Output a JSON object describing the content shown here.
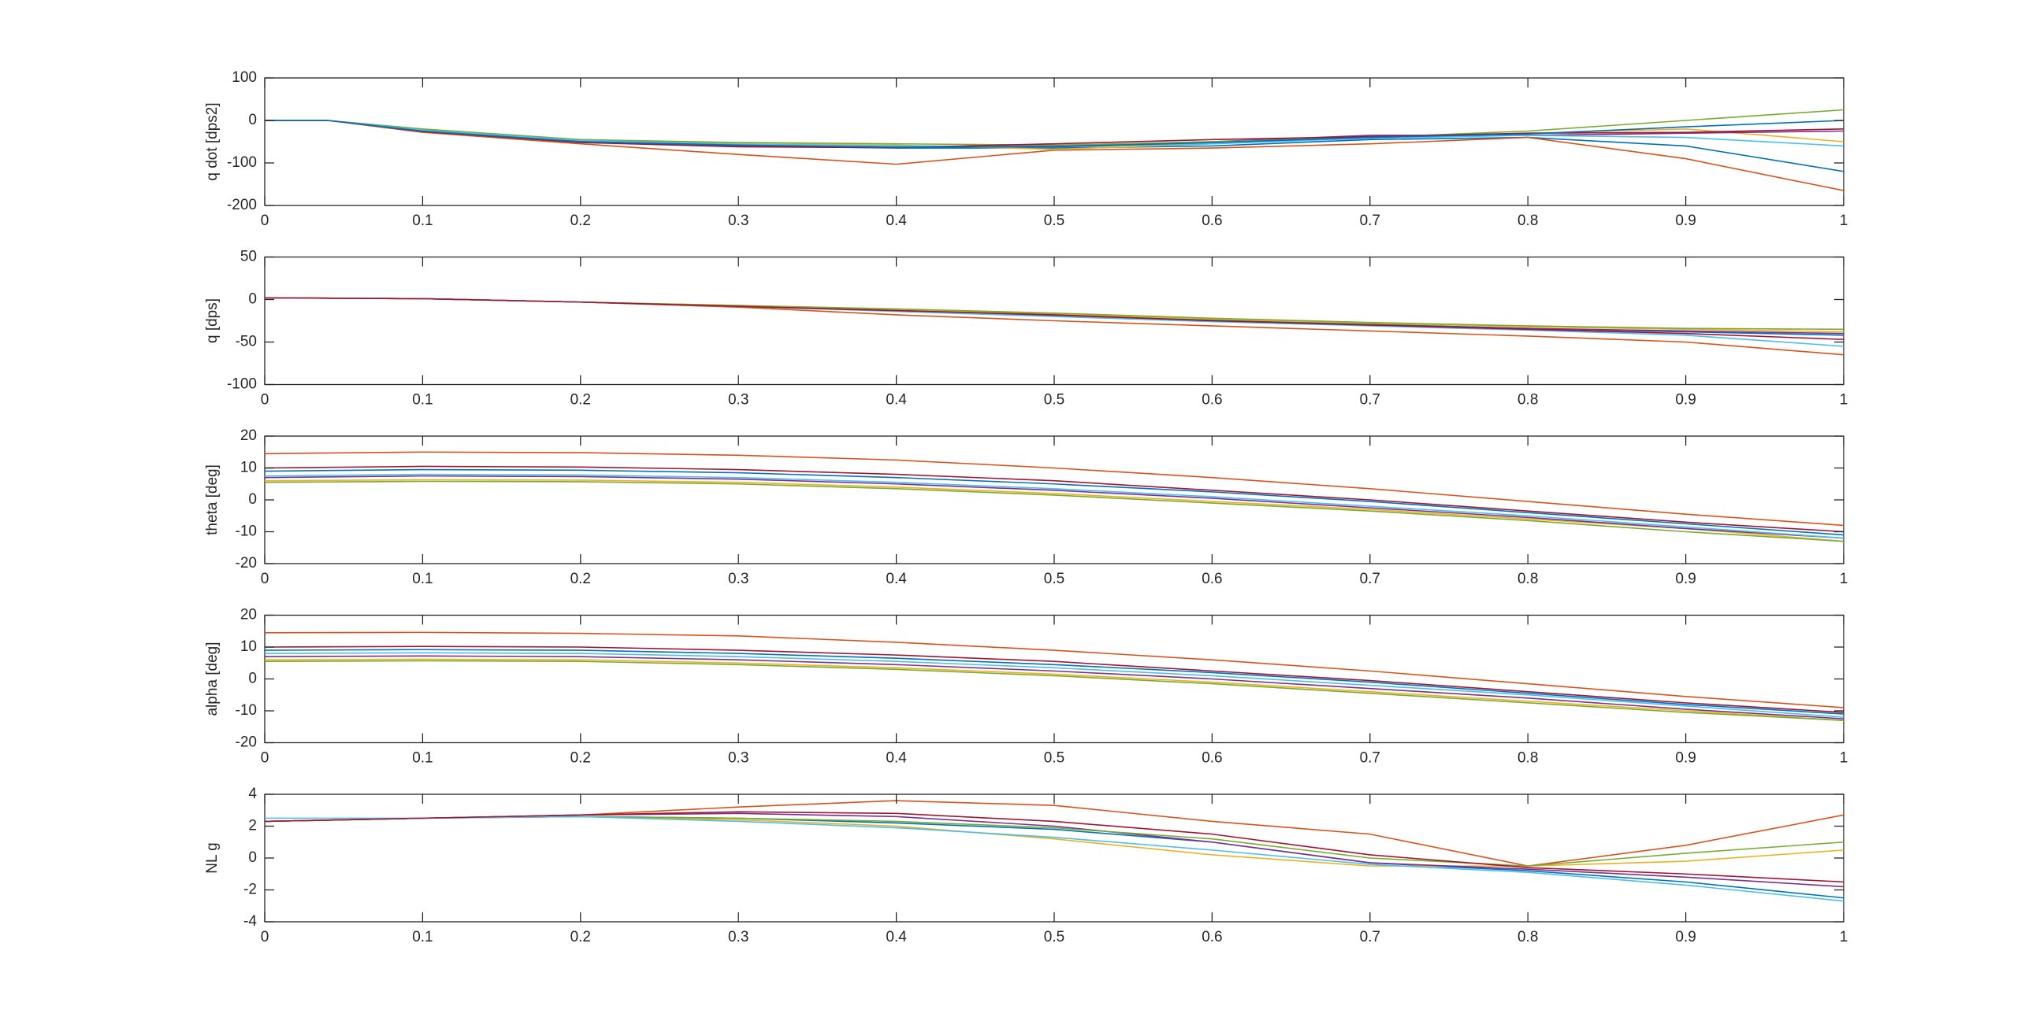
{
  "chart_data": [
    {
      "type": "line",
      "ylabel": "q dot [dps2]",
      "ylim": [
        -200,
        100
      ],
      "yticks": [
        -200,
        -100,
        0,
        100
      ],
      "xlim": [
        0,
        1
      ],
      "xticks": [
        0,
        0.1,
        0.2,
        0.3,
        0.4,
        0.5,
        0.6,
        0.7,
        0.8,
        0.9,
        1
      ],
      "x": [
        0,
        0.04,
        0.1,
        0.2,
        0.3,
        0.4,
        0.5,
        0.6,
        0.7,
        0.8,
        0.9,
        1
      ],
      "series": [
        {
          "color": "#0072bd",
          "values": [
            0,
            0,
            -25,
            -50,
            -60,
            -65,
            -65,
            -60,
            -45,
            -40,
            -60,
            -120
          ]
        },
        {
          "color": "#d95319",
          "values": [
            0,
            0,
            -28,
            -55,
            -80,
            -103,
            -70,
            -65,
            -55,
            -40,
            -90,
            -165
          ]
        },
        {
          "color": "#edb120",
          "values": [
            0,
            0,
            -22,
            -45,
            -55,
            -58,
            -68,
            -55,
            -40,
            -30,
            -20,
            -50
          ]
        },
        {
          "color": "#7e2f8e",
          "values": [
            0,
            0,
            -24,
            -48,
            -58,
            -62,
            -60,
            -50,
            -35,
            -35,
            -30,
            -25
          ]
        },
        {
          "color": "#77ac30",
          "values": [
            0,
            0,
            -20,
            -45,
            -52,
            -55,
            -58,
            -50,
            -40,
            -25,
            0,
            25
          ]
        },
        {
          "color": "#4dbeee",
          "values": [
            0,
            0,
            -23,
            -47,
            -56,
            -60,
            -62,
            -55,
            -42,
            -35,
            -40,
            -60
          ]
        },
        {
          "color": "#a2142f",
          "values": [
            0,
            0,
            -26,
            -52,
            -62,
            -64,
            -55,
            -45,
            -38,
            -30,
            -28,
            -20
          ]
        },
        {
          "color": "#0072bd",
          "values": [
            0,
            0,
            -25,
            -50,
            -58,
            -63,
            -62,
            -52,
            -40,
            -32,
            -15,
            0
          ]
        }
      ]
    },
    {
      "type": "line",
      "ylabel": "q  [dps]",
      "ylim": [
        -100,
        50
      ],
      "yticks": [
        -100,
        -50,
        0,
        50
      ],
      "xlim": [
        0,
        1
      ],
      "xticks": [
        0,
        0.1,
        0.2,
        0.3,
        0.4,
        0.5,
        0.6,
        0.7,
        0.8,
        0.9,
        1
      ],
      "x": [
        0,
        0.1,
        0.2,
        0.3,
        0.4,
        0.5,
        0.6,
        0.7,
        0.8,
        0.9,
        1
      ],
      "series": [
        {
          "color": "#0072bd",
          "values": [
            2,
            1,
            -3,
            -8,
            -13,
            -18,
            -24,
            -29,
            -34,
            -38,
            -42
          ]
        },
        {
          "color": "#d95319",
          "values": [
            2,
            1,
            -3,
            -9,
            -18,
            -25,
            -31,
            -37,
            -43,
            -50,
            -65
          ]
        },
        {
          "color": "#edb120",
          "values": [
            2,
            1,
            -3,
            -7,
            -12,
            -17,
            -23,
            -28,
            -32,
            -35,
            -38
          ]
        },
        {
          "color": "#7e2f8e",
          "values": [
            2,
            1,
            -3,
            -8,
            -13,
            -19,
            -25,
            -30,
            -34,
            -37,
            -40
          ]
        },
        {
          "color": "#77ac30",
          "values": [
            2,
            1,
            -3,
            -7,
            -11,
            -16,
            -22,
            -27,
            -31,
            -34,
            -35
          ]
        },
        {
          "color": "#4dbeee",
          "values": [
            2,
            1,
            -3,
            -8,
            -14,
            -20,
            -26,
            -31,
            -36,
            -42,
            -55
          ]
        },
        {
          "color": "#a2142f",
          "values": [
            2,
            1,
            -3,
            -8,
            -13,
            -18,
            -25,
            -30,
            -35,
            -40,
            -47
          ]
        }
      ]
    },
    {
      "type": "line",
      "ylabel": "theta [deg]",
      "ylim": [
        -20,
        20
      ],
      "yticks": [
        -20,
        -10,
        0,
        10,
        20
      ],
      "xlim": [
        0,
        1
      ],
      "xticks": [
        0,
        0.1,
        0.2,
        0.3,
        0.4,
        0.5,
        0.6,
        0.7,
        0.8,
        0.9,
        1
      ],
      "x": [
        0,
        0.1,
        0.2,
        0.3,
        0.4,
        0.5,
        0.6,
        0.7,
        0.8,
        0.9,
        1
      ],
      "series": [
        {
          "color": "#0072bd",
          "values": [
            9,
            9.5,
            9.3,
            8.5,
            7,
            5,
            2.5,
            -0.5,
            -4,
            -7.5,
            -11
          ]
        },
        {
          "color": "#d95319",
          "values": [
            14.5,
            15,
            14.8,
            14,
            12.5,
            10,
            7,
            3.5,
            -0.5,
            -4.5,
            -8
          ]
        },
        {
          "color": "#edb120",
          "values": [
            6,
            6.3,
            6.2,
            5.5,
            4,
            2,
            -0.5,
            -3,
            -6,
            -9,
            -13
          ]
        },
        {
          "color": "#7e2f8e",
          "values": [
            7,
            7.5,
            7.3,
            6.5,
            5,
            3,
            0.5,
            -2.5,
            -5.5,
            -9,
            -12
          ]
        },
        {
          "color": "#77ac30",
          "values": [
            5.5,
            5.8,
            5.7,
            5,
            3.5,
            1.5,
            -1,
            -3.5,
            -6.5,
            -10,
            -13
          ]
        },
        {
          "color": "#4dbeee",
          "values": [
            7.5,
            8,
            7.8,
            7,
            5.5,
            3.5,
            1,
            -2,
            -5,
            -8.5,
            -12
          ]
        },
        {
          "color": "#a2142f",
          "values": [
            10,
            10.5,
            10.3,
            9.5,
            8,
            6,
            3,
            0,
            -3.5,
            -7,
            -10
          ]
        }
      ]
    },
    {
      "type": "line",
      "ylabel": "alpha [deg]",
      "ylim": [
        -20,
        20
      ],
      "yticks": [
        -20,
        -10,
        0,
        10,
        20
      ],
      "xlim": [
        0,
        1
      ],
      "xticks": [
        0,
        0.1,
        0.2,
        0.3,
        0.4,
        0.5,
        0.6,
        0.7,
        0.8,
        0.9,
        1
      ],
      "x": [
        0,
        0.1,
        0.2,
        0.3,
        0.4,
        0.5,
        0.6,
        0.7,
        0.8,
        0.9,
        1
      ],
      "series": [
        {
          "color": "#0072bd",
          "values": [
            9,
            9.2,
            9,
            8,
            6.5,
            4.5,
            2,
            -1,
            -4.5,
            -8,
            -11
          ]
        },
        {
          "color": "#d95319",
          "values": [
            14.5,
            14.6,
            14.3,
            13.5,
            11.5,
            9,
            6,
            2.5,
            -1.5,
            -5.5,
            -9
          ]
        },
        {
          "color": "#edb120",
          "values": [
            6,
            6.2,
            6,
            5,
            3.5,
            1.5,
            -1,
            -4,
            -7,
            -10,
            -13
          ]
        },
        {
          "color": "#7e2f8e",
          "values": [
            7,
            7.2,
            7,
            6,
            4.5,
            2.5,
            0,
            -3,
            -6,
            -9.5,
            -12.5
          ]
        },
        {
          "color": "#77ac30",
          "values": [
            5.5,
            5.7,
            5.5,
            4.5,
            3,
            1,
            -1.5,
            -4.5,
            -7.5,
            -10.5,
            -13
          ]
        },
        {
          "color": "#4dbeee",
          "values": [
            8,
            8.2,
            8,
            7,
            5.5,
            3.5,
            1,
            -2,
            -5,
            -8.5,
            -12
          ]
        },
        {
          "color": "#a2142f",
          "values": [
            10,
            10.2,
            10,
            9,
            7.5,
            5.5,
            2.5,
            -0.5,
            -4,
            -7.5,
            -10.5
          ]
        }
      ]
    },
    {
      "type": "line",
      "ylabel": "NL g",
      "ylim": [
        -4,
        4
      ],
      "yticks": [
        -4,
        -2,
        0,
        2,
        4
      ],
      "xlim": [
        0,
        1
      ],
      "xticks": [
        0,
        0.1,
        0.2,
        0.3,
        0.4,
        0.5,
        0.6,
        0.7,
        0.8,
        0.9,
        1
      ],
      "x": [
        0,
        0.1,
        0.2,
        0.3,
        0.4,
        0.5,
        0.6,
        0.7,
        0.8,
        0.9,
        1
      ],
      "series": [
        {
          "color": "#0072bd",
          "values": [
            2.3,
            2.5,
            2.6,
            2.5,
            2.2,
            1.8,
            1,
            -0.3,
            -0.8,
            -1.5,
            -2.5
          ]
        },
        {
          "color": "#d95319",
          "values": [
            2.3,
            2.5,
            2.7,
            3.2,
            3.6,
            3.3,
            2.3,
            1.5,
            -0.5,
            0.8,
            2.7
          ]
        },
        {
          "color": "#edb120",
          "values": [
            2.3,
            2.5,
            2.6,
            2.4,
            2,
            1.2,
            0.2,
            -0.5,
            -0.5,
            -0.2,
            0.5
          ]
        },
        {
          "color": "#7e2f8e",
          "values": [
            2.3,
            2.5,
            2.7,
            2.8,
            2.6,
            2,
            1,
            -0.3,
            -0.7,
            -1.2,
            -1.8
          ]
        },
        {
          "color": "#77ac30",
          "values": [
            2.3,
            2.5,
            2.6,
            2.5,
            2.3,
            1.9,
            1.2,
            0,
            -0.5,
            0.3,
            1
          ]
        },
        {
          "color": "#4dbeee",
          "values": [
            2.5,
            2.5,
            2.6,
            2.3,
            1.9,
            1.3,
            0.5,
            -0.4,
            -0.9,
            -1.7,
            -2.7
          ]
        },
        {
          "color": "#a2142f",
          "values": [
            2.3,
            2.5,
            2.7,
            2.9,
            2.8,
            2.3,
            1.5,
            0.2,
            -0.6,
            -1,
            -1.5
          ]
        }
      ]
    }
  ]
}
